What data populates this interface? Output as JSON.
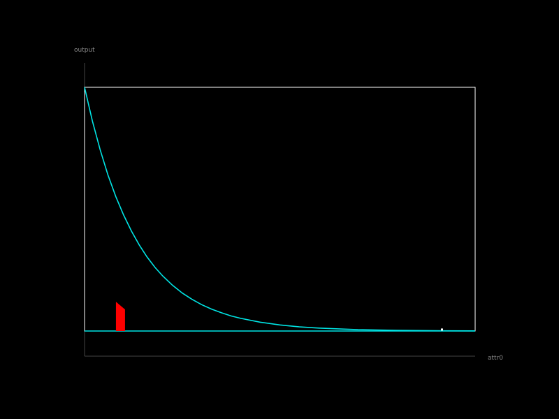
{
  "chart_data": {
    "type": "line",
    "title": "",
    "xlabel": "attr0",
    "ylabel": "output",
    "xlim": [
      0,
      1
    ],
    "ylim": [
      0,
      1
    ],
    "grid": false,
    "legend": "none",
    "series": [
      {
        "color": "#00e5e5",
        "x": [
          0.0,
          0.02,
          0.04,
          0.06,
          0.08,
          0.1,
          0.12,
          0.14,
          0.16,
          0.18,
          0.2,
          0.225,
          0.25,
          0.275,
          0.3,
          0.325,
          0.35,
          0.375,
          0.4,
          0.45,
          0.5,
          0.55,
          0.6,
          0.7,
          0.8,
          0.9,
          1.0
        ],
        "values": [
          1.0,
          0.862,
          0.743,
          0.64,
          0.552,
          0.476,
          0.41,
          0.353,
          0.304,
          0.262,
          0.226,
          0.188,
          0.156,
          0.13,
          0.108,
          0.09,
          0.075,
          0.062,
          0.052,
          0.036,
          0.025,
          0.017,
          0.012,
          0.0055,
          0.0026,
          0.0012,
          0.0006
        ]
      }
    ],
    "baseline": {
      "color": "#00e5e5",
      "y": 0
    },
    "markers": [
      {
        "shape": "pointer",
        "color": "#ff0000",
        "x": 0.092,
        "height": 0.12
      },
      {
        "shape": "dot",
        "color": "#ffffff",
        "x": 0.915,
        "y": 0.006
      }
    ],
    "colors": {
      "background": "#000000",
      "frame": "#ffffff",
      "axis": "#444444",
      "label": "#888888"
    }
  }
}
